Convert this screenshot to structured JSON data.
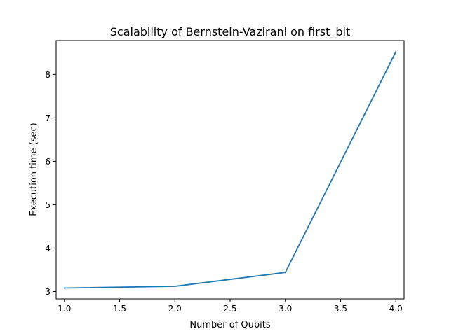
{
  "chart_data": {
    "type": "line",
    "title": "Scalability of Bernstein-Vazirani on first_bit",
    "xlabel": "Number of Qubits",
    "ylabel": "Execution time (sec)",
    "x": [
      1.0,
      2.0,
      3.0,
      4.0
    ],
    "series": [
      {
        "values": [
          3.08,
          3.12,
          3.44,
          8.52
        ],
        "color": "#1f77b4"
      }
    ],
    "xlim": [
      0.925,
      4.075
    ],
    "ylim": [
      2.83,
      8.78
    ],
    "xticks": [
      1.0,
      1.5,
      2.0,
      2.5,
      3.0,
      3.5,
      4.0
    ],
    "xtick_labels": [
      "1.0",
      "1.5",
      "2.0",
      "2.5",
      "3.0",
      "3.5",
      "4.0"
    ],
    "yticks": [
      3,
      4,
      5,
      6,
      7,
      8
    ],
    "ytick_labels": [
      "3",
      "4",
      "5",
      "6",
      "7",
      "8"
    ],
    "grid": false,
    "legend": false
  }
}
